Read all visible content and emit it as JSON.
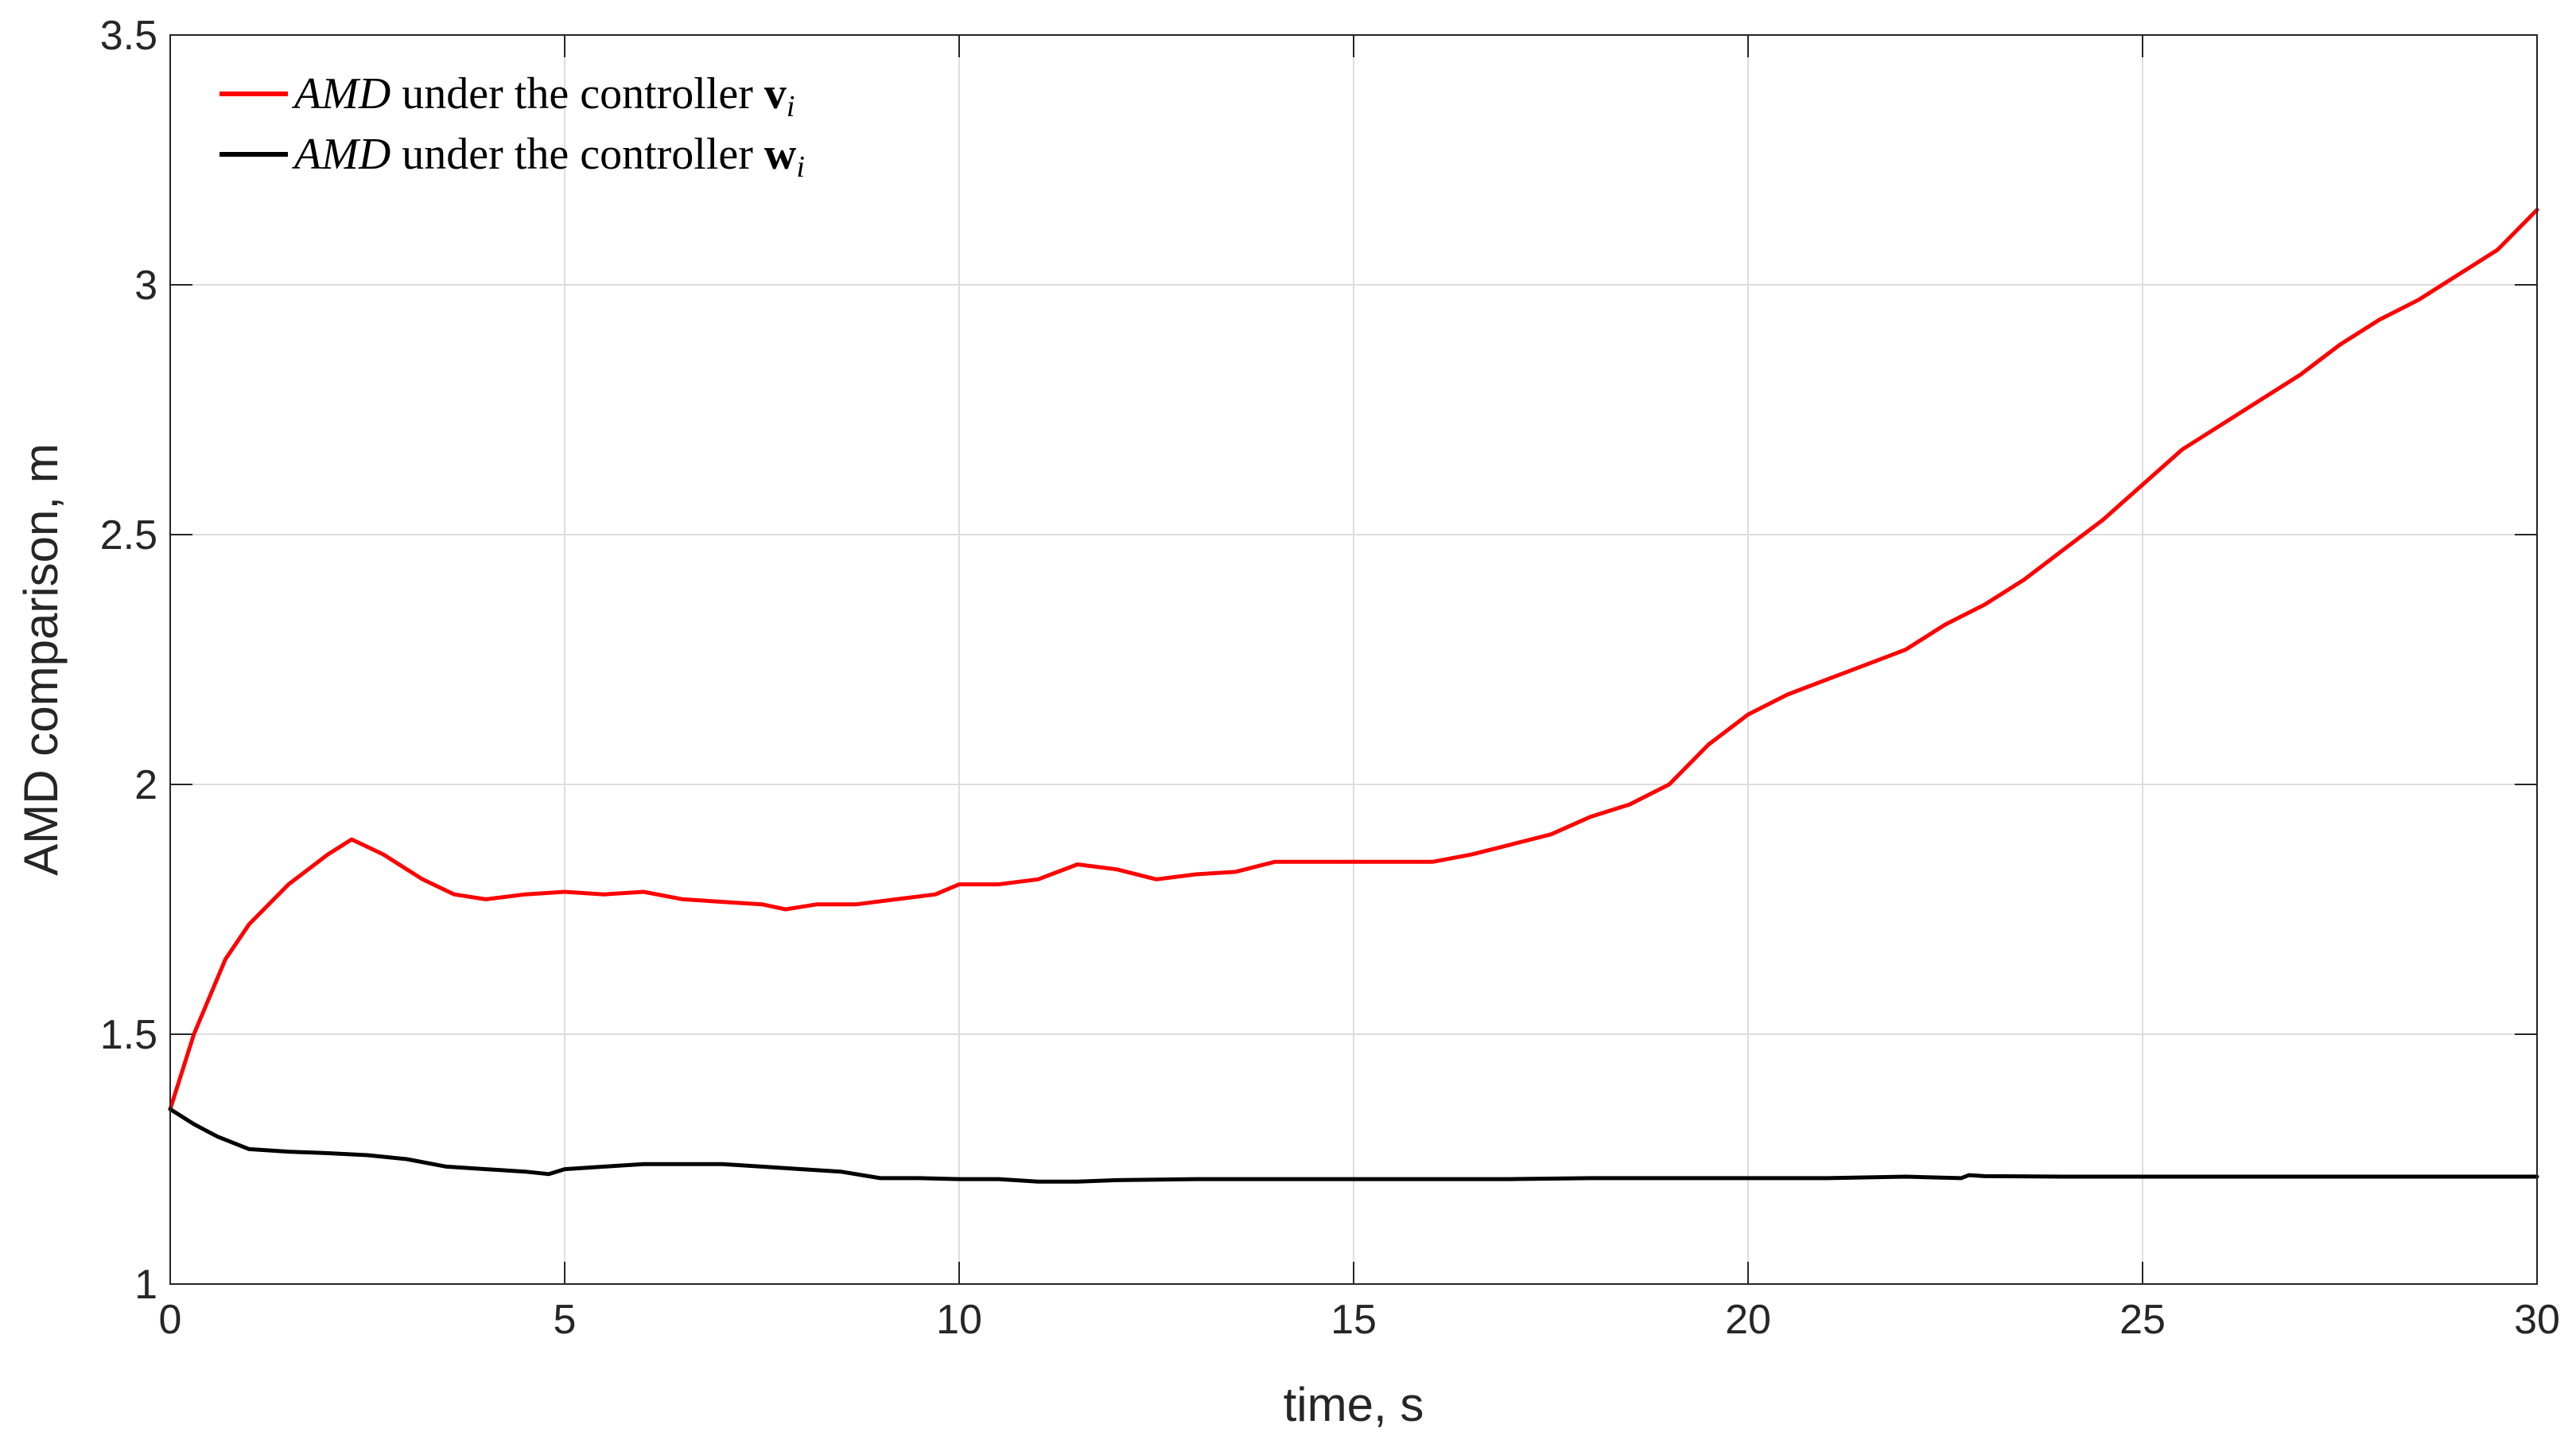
{
  "chart_data": {
    "type": "line",
    "xlabel": "time, s",
    "ylabel": "AMD comparison, m",
    "xlim": [
      0,
      30
    ],
    "ylim": [
      1,
      3.5
    ],
    "xticks": [
      0,
      5,
      10,
      15,
      20,
      25,
      30
    ],
    "yticks": [
      1,
      1.5,
      2,
      2.5,
      3,
      3.5
    ],
    "xtick_labels": [
      "0",
      "5",
      "10",
      "15",
      "20",
      "25",
      "30"
    ],
    "ytick_labels": [
      "1",
      "1.5",
      "2",
      "2.5",
      "3",
      "3.5"
    ],
    "grid": true,
    "legend_position": "top-left",
    "series": [
      {
        "legend": {
          "var": "AMD",
          "text": " under the controller ",
          "sym": "v",
          "sub": "i"
        },
        "color": "#ff0000",
        "x": [
          0,
          0.3,
          0.7,
          1.0,
          1.5,
          2.0,
          2.3,
          2.7,
          3.2,
          3.6,
          4.0,
          4.5,
          5.0,
          5.5,
          6.0,
          6.5,
          7.0,
          7.5,
          7.8,
          8.2,
          8.7,
          9.2,
          9.7,
          10.0,
          10.5,
          11.0,
          11.5,
          12.0,
          12.5,
          13.0,
          13.5,
          14.0,
          14.5,
          15.0,
          15.5,
          16.0,
          16.5,
          17.0,
          17.5,
          18.0,
          18.5,
          19.0,
          19.5,
          20.0,
          20.5,
          21.0,
          21.5,
          22.0,
          22.5,
          23.0,
          23.5,
          24.0,
          24.5,
          25.0,
          25.5,
          26.0,
          26.5,
          27.0,
          27.5,
          28.0,
          28.5,
          29.0,
          29.5,
          30.0
        ],
        "y": [
          1.35,
          1.5,
          1.65,
          1.72,
          1.8,
          1.86,
          1.89,
          1.86,
          1.81,
          1.78,
          1.77,
          1.78,
          1.785,
          1.78,
          1.785,
          1.77,
          1.765,
          1.76,
          1.75,
          1.76,
          1.76,
          1.77,
          1.78,
          1.8,
          1.8,
          1.81,
          1.84,
          1.83,
          1.81,
          1.82,
          1.825,
          1.845,
          1.845,
          1.845,
          1.845,
          1.845,
          1.86,
          1.88,
          1.9,
          1.935,
          1.96,
          2.0,
          2.08,
          2.14,
          2.18,
          2.21,
          2.24,
          2.27,
          2.32,
          2.36,
          2.41,
          2.47,
          2.53,
          2.6,
          2.67,
          2.72,
          2.77,
          2.82,
          2.88,
          2.93,
          2.97,
          3.02,
          3.07,
          3.15
        ]
      },
      {
        "legend": {
          "var": "AMD",
          "text": " under the controller ",
          "sym": "w",
          "sub": "i"
        },
        "color": "#000000",
        "x": [
          0,
          0.3,
          0.6,
          1.0,
          1.5,
          2.0,
          2.5,
          3.0,
          3.5,
          4.0,
          4.5,
          4.8,
          5.0,
          5.5,
          6.0,
          6.5,
          7.0,
          7.5,
          8.0,
          8.5,
          9.0,
          9.5,
          10.0,
          10.5,
          11.0,
          11.5,
          12.0,
          13.0,
          14.0,
          15.0,
          16.0,
          17.0,
          18.0,
          19.0,
          20.0,
          21.0,
          22.0,
          22.7,
          22.8,
          23.0,
          24.0,
          25.0,
          26.0,
          27.0,
          28.0,
          29.0,
          30.0
        ],
        "y": [
          1.35,
          1.32,
          1.295,
          1.27,
          1.265,
          1.262,
          1.258,
          1.25,
          1.235,
          1.23,
          1.225,
          1.22,
          1.23,
          1.235,
          1.24,
          1.24,
          1.24,
          1.235,
          1.23,
          1.225,
          1.212,
          1.212,
          1.21,
          1.21,
          1.205,
          1.205,
          1.208,
          1.21,
          1.21,
          1.21,
          1.21,
          1.21,
          1.212,
          1.212,
          1.212,
          1.212,
          1.215,
          1.212,
          1.218,
          1.216,
          1.215,
          1.215,
          1.215,
          1.215,
          1.215,
          1.215,
          1.215
        ]
      }
    ]
  }
}
